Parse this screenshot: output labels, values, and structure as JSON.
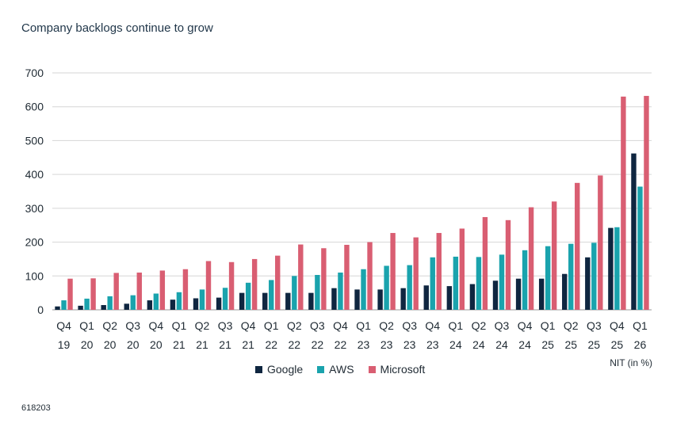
{
  "title": "Company backlogs continue to grow",
  "unit_note": "NIT (in %)",
  "code": "618203",
  "colors": {
    "Google": "#0f2640",
    "AWS": "#1aa3ad",
    "Microsoft": "#d95e72",
    "grid": "#d6d6d6",
    "axis": "#999999"
  },
  "legend": [
    "Google",
    "AWS",
    "Microsoft"
  ],
  "chart_data": {
    "type": "bar",
    "title": "Company backlogs continue to grow",
    "xlabel": "",
    "ylabel": "",
    "ylim": [
      0,
      700
    ],
    "yticks": [
      0,
      100,
      200,
      300,
      400,
      500,
      600,
      700
    ],
    "grid": true,
    "legend_position": "bottom",
    "categories": [
      [
        "Q4",
        "19"
      ],
      [
        "Q1",
        "20"
      ],
      [
        "Q2",
        "20"
      ],
      [
        "Q3",
        "20"
      ],
      [
        "Q4",
        "20"
      ],
      [
        "Q1",
        "21"
      ],
      [
        "Q2",
        "21"
      ],
      [
        "Q3",
        "21"
      ],
      [
        "Q4",
        "21"
      ],
      [
        "Q1",
        "22"
      ],
      [
        "Q2",
        "22"
      ],
      [
        "Q3",
        "22"
      ],
      [
        "Q4",
        "22"
      ],
      [
        "Q1",
        "23"
      ],
      [
        "Q2",
        "23"
      ],
      [
        "Q3",
        "23"
      ],
      [
        "Q4",
        "23"
      ],
      [
        "Q1",
        "24"
      ],
      [
        "Q2",
        "24"
      ],
      [
        "Q3",
        "24"
      ],
      [
        "Q4",
        "24"
      ],
      [
        "Q1",
        "25"
      ],
      [
        "Q2",
        "25"
      ],
      [
        "Q3",
        "25"
      ],
      [
        "Q4",
        "25"
      ],
      [
        "Q1",
        "26"
      ]
    ],
    "series": [
      {
        "name": "Google",
        "values": [
          10,
          12,
          14,
          18,
          28,
          30,
          34,
          36,
          50,
          50,
          50,
          50,
          64,
          60,
          60,
          64,
          72,
          70,
          76,
          86,
          92,
          92,
          106,
          155,
          242,
          462
        ]
      },
      {
        "name": "AWS",
        "values": [
          28,
          33,
          40,
          43,
          48,
          52,
          60,
          65,
          80,
          88,
          100,
          103,
          110,
          120,
          130,
          132,
          155,
          157,
          156,
          163,
          176,
          188,
          195,
          198,
          244,
          364
        ]
      },
      {
        "name": "Microsoft",
        "values": [
          92,
          93,
          109,
          110,
          116,
          120,
          144,
          141,
          150,
          160,
          193,
          182,
          192,
          200,
          227,
          214,
          227,
          240,
          274,
          265,
          303,
          320,
          375,
          397,
          630,
          632
        ]
      }
    ]
  }
}
